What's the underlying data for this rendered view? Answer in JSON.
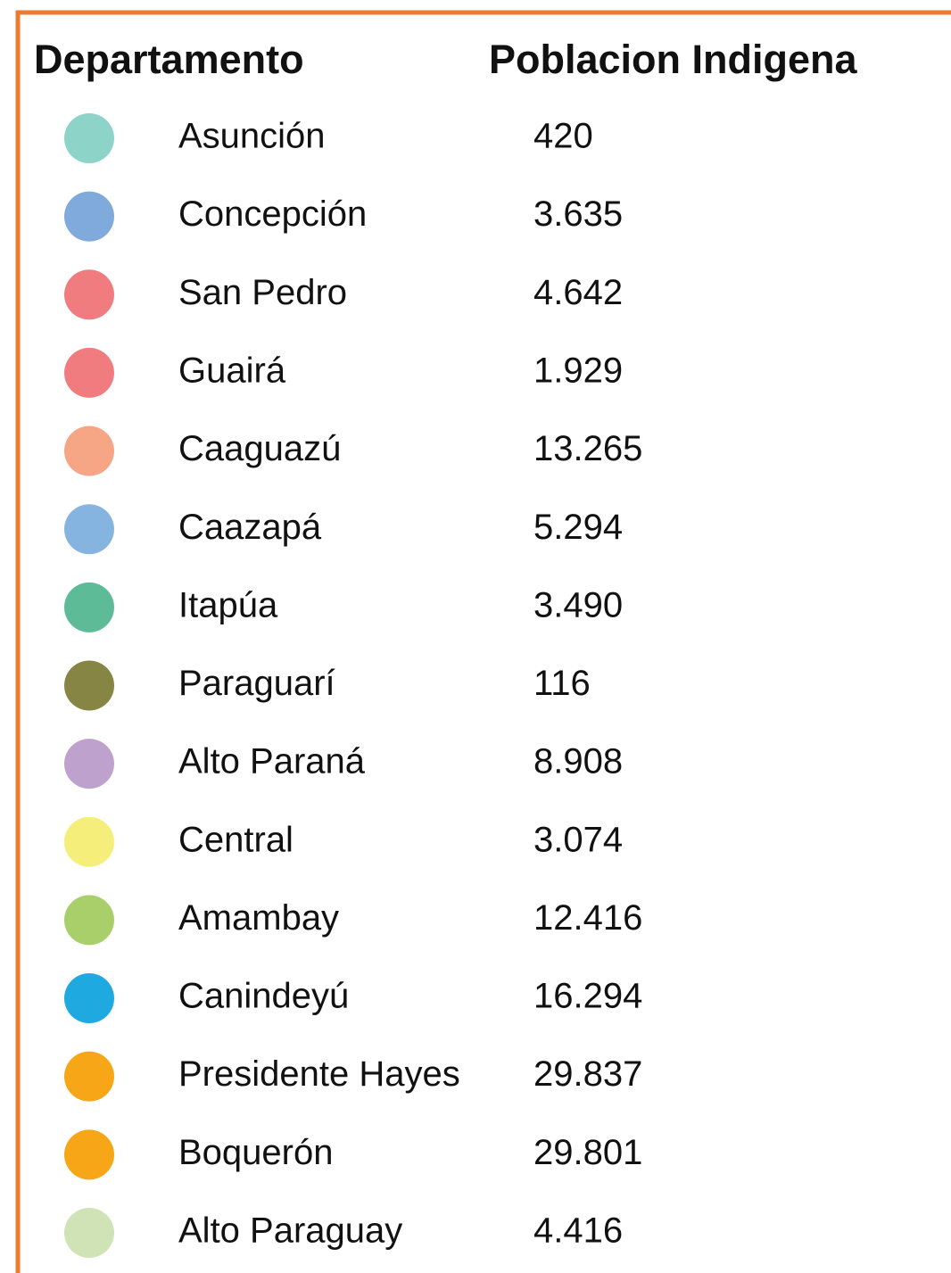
{
  "table": {
    "header": [
      "Departamento",
      "Poblacion Indigena"
    ],
    "rows": [
      {
        "name": "Asunción",
        "value": "420",
        "color": "#8dd3c7"
      },
      {
        "name": "Concepción",
        "value": "3.635",
        "color": "#80a9dc"
      },
      {
        "name": "San Pedro",
        "value": "4.642",
        "color": "#f07c80"
      },
      {
        "name": "Guairá",
        "value": "1.929",
        "color": "#f07c80"
      },
      {
        "name": "Caaguazú",
        "value": "13.265",
        "color": "#f6a585"
      },
      {
        "name": "Caazapá",
        "value": "5.294",
        "color": "#86b4e0"
      },
      {
        "name": "Itapúa",
        "value": "3.490",
        "color": "#5dbc97"
      },
      {
        "name": "Paraguarí",
        "value": "116",
        "color": "#878544"
      },
      {
        "name": "Alto Paraná",
        "value": "8.908",
        "color": "#bfa1cd"
      },
      {
        "name": "Central",
        "value": "3.074",
        "color": "#f6ee7a"
      },
      {
        "name": "Amambay",
        "value": "12.416",
        "color": "#a9cf6b"
      },
      {
        "name": "Canindeyú",
        "value": "16.294",
        "color": "#1fa9e1"
      },
      {
        "name": "Presidente Hayes",
        "value": "29.837",
        "color": "#f6a616"
      },
      {
        "name": "Boquerón",
        "value": "29.801",
        "color": "#f6a616"
      },
      {
        "name": "Alto Paraguay",
        "value": "4.416",
        "color": "#cfe3b6"
      }
    ]
  }
}
